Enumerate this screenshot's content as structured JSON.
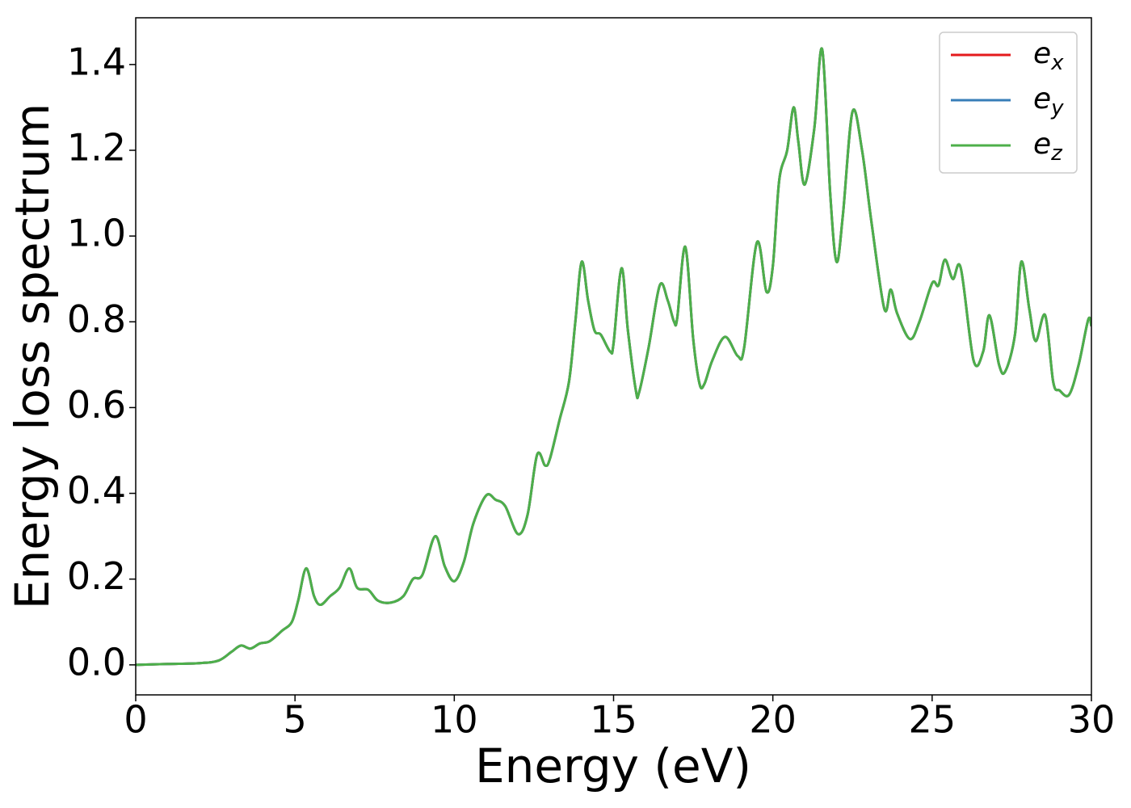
{
  "chart_data": {
    "type": "line",
    "xlabel": "Energy (eV)",
    "ylabel": "Energy loss spectrum",
    "x": [
      0,
      1,
      2,
      2.6,
      3.0,
      3.3,
      3.6,
      3.9,
      4.2,
      4.6,
      4.9,
      5.1,
      5.35,
      5.6,
      5.8,
      6.1,
      6.4,
      6.7,
      6.95,
      7.3,
      7.6,
      8.0,
      8.4,
      8.7,
      9.0,
      9.4,
      9.7,
      10.0,
      10.3,
      10.6,
      11.0,
      11.3,
      11.6,
      12.0,
      12.3,
      12.6,
      12.85,
      13.0,
      13.3,
      13.6,
      13.8,
      14.0,
      14.2,
      14.4,
      14.6,
      14.9,
      15.0,
      15.25,
      15.45,
      15.7,
      15.8,
      16.1,
      16.45,
      16.7,
      16.9,
      17.0,
      17.25,
      17.5,
      17.7,
      17.85,
      18.1,
      18.5,
      18.9,
      19.1,
      19.5,
      19.8,
      20.0,
      20.2,
      20.45,
      20.65,
      20.8,
      21.0,
      21.3,
      21.55,
      21.8,
      22.0,
      22.2,
      22.5,
      22.8,
      23.1,
      23.5,
      23.7,
      23.9,
      24.3,
      24.6,
      25.0,
      25.2,
      25.4,
      25.65,
      25.9,
      26.3,
      26.6,
      26.8,
      27.1,
      27.3,
      27.6,
      27.8,
      28.05,
      28.25,
      28.55,
      28.8,
      29.0,
      29.3,
      29.6,
      29.9,
      30
    ],
    "series": [
      {
        "name": "ex",
        "color": "#e41a1c",
        "values": [
          0,
          0.002,
          0.004,
          0.01,
          0.03,
          0.045,
          0.038,
          0.05,
          0.055,
          0.08,
          0.1,
          0.15,
          0.225,
          0.16,
          0.14,
          0.16,
          0.18,
          0.225,
          0.18,
          0.175,
          0.15,
          0.145,
          0.16,
          0.2,
          0.21,
          0.3,
          0.23,
          0.195,
          0.24,
          0.33,
          0.395,
          0.385,
          0.37,
          0.305,
          0.35,
          0.49,
          0.465,
          0.48,
          0.57,
          0.66,
          0.8,
          0.94,
          0.85,
          0.78,
          0.77,
          0.73,
          0.75,
          0.925,
          0.78,
          0.64,
          0.635,
          0.74,
          0.885,
          0.85,
          0.8,
          0.81,
          0.975,
          0.76,
          0.655,
          0.655,
          0.71,
          0.765,
          0.72,
          0.74,
          0.985,
          0.87,
          0.93,
          1.13,
          1.2,
          1.3,
          1.22,
          1.12,
          1.25,
          1.435,
          1.1,
          0.94,
          1.05,
          1.29,
          1.2,
          1.03,
          0.83,
          0.875,
          0.82,
          0.76,
          0.8,
          0.89,
          0.885,
          0.945,
          0.9,
          0.925,
          0.71,
          0.73,
          0.815,
          0.7,
          0.685,
          0.77,
          0.94,
          0.83,
          0.755,
          0.815,
          0.66,
          0.64,
          0.63,
          0.7,
          0.805,
          0.79
        ]
      },
      {
        "name": "ey",
        "color": "#377eb8",
        "values": [
          0,
          0.002,
          0.004,
          0.01,
          0.03,
          0.045,
          0.038,
          0.05,
          0.055,
          0.08,
          0.1,
          0.15,
          0.225,
          0.16,
          0.14,
          0.16,
          0.18,
          0.225,
          0.18,
          0.175,
          0.15,
          0.145,
          0.16,
          0.2,
          0.21,
          0.3,
          0.23,
          0.195,
          0.24,
          0.33,
          0.395,
          0.385,
          0.37,
          0.305,
          0.35,
          0.49,
          0.465,
          0.48,
          0.57,
          0.66,
          0.8,
          0.94,
          0.85,
          0.78,
          0.77,
          0.73,
          0.75,
          0.925,
          0.78,
          0.64,
          0.635,
          0.74,
          0.885,
          0.85,
          0.8,
          0.81,
          0.975,
          0.76,
          0.655,
          0.655,
          0.71,
          0.765,
          0.72,
          0.74,
          0.985,
          0.87,
          0.93,
          1.13,
          1.2,
          1.3,
          1.22,
          1.12,
          1.25,
          1.435,
          1.1,
          0.94,
          1.05,
          1.29,
          1.2,
          1.03,
          0.83,
          0.875,
          0.82,
          0.76,
          0.8,
          0.89,
          0.885,
          0.945,
          0.9,
          0.925,
          0.71,
          0.73,
          0.815,
          0.7,
          0.685,
          0.77,
          0.94,
          0.83,
          0.755,
          0.815,
          0.66,
          0.64,
          0.63,
          0.7,
          0.805,
          0.79
        ]
      },
      {
        "name": "ez",
        "color": "#4daf4a",
        "values": [
          0,
          0.002,
          0.004,
          0.01,
          0.03,
          0.045,
          0.038,
          0.05,
          0.055,
          0.08,
          0.1,
          0.15,
          0.225,
          0.16,
          0.14,
          0.16,
          0.18,
          0.225,
          0.18,
          0.175,
          0.15,
          0.145,
          0.16,
          0.2,
          0.21,
          0.3,
          0.23,
          0.195,
          0.24,
          0.33,
          0.395,
          0.385,
          0.37,
          0.305,
          0.35,
          0.49,
          0.465,
          0.48,
          0.57,
          0.66,
          0.8,
          0.94,
          0.85,
          0.78,
          0.77,
          0.73,
          0.75,
          0.925,
          0.78,
          0.64,
          0.635,
          0.74,
          0.885,
          0.85,
          0.8,
          0.81,
          0.975,
          0.76,
          0.655,
          0.655,
          0.71,
          0.765,
          0.72,
          0.74,
          0.985,
          0.87,
          0.93,
          1.13,
          1.2,
          1.3,
          1.22,
          1.12,
          1.25,
          1.435,
          1.1,
          0.94,
          1.05,
          1.29,
          1.2,
          1.03,
          0.83,
          0.875,
          0.82,
          0.76,
          0.8,
          0.89,
          0.885,
          0.945,
          0.9,
          0.925,
          0.71,
          0.73,
          0.815,
          0.7,
          0.685,
          0.77,
          0.94,
          0.83,
          0.755,
          0.815,
          0.66,
          0.64,
          0.63,
          0.7,
          0.805,
          0.79
        ]
      }
    ],
    "xlim": [
      0,
      30
    ],
    "xticks": [
      0,
      5,
      10,
      15,
      20,
      25,
      30
    ],
    "ylim": [
      -0.07,
      1.509
    ],
    "yticks": [
      {
        "value": 0,
        "label": "0.0"
      },
      0.2,
      0.4,
      0.6,
      0.8,
      {
        "value": 1,
        "label": "1.0"
      },
      1.2,
      1.4
    ],
    "grid": false,
    "legend": "upper right"
  }
}
